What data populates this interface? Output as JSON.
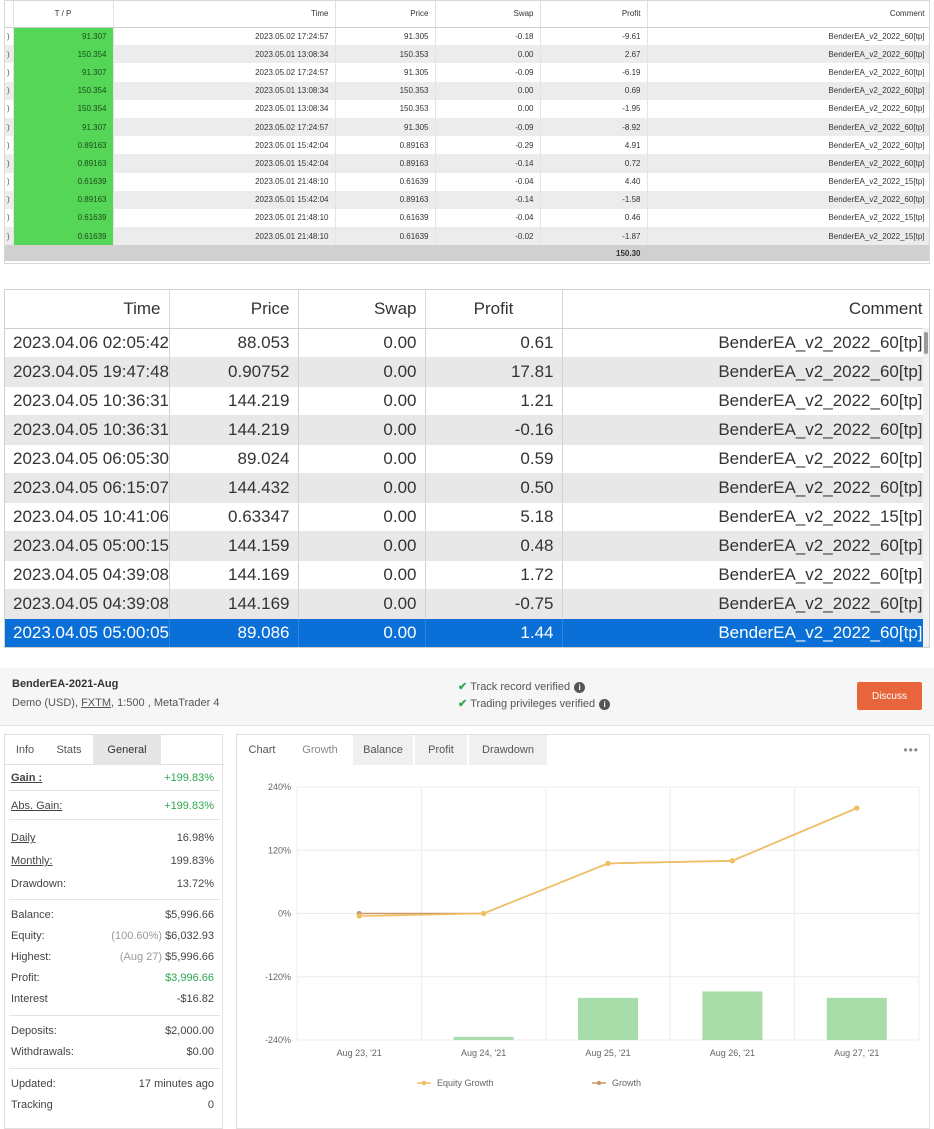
{
  "table_small": {
    "headers": [
      "",
      "T / P",
      "Time",
      "Price",
      "Swap",
      "Profit",
      "Comment"
    ],
    "rows": [
      {
        "edge": ")",
        "tp": "91.307",
        "time": "2023.05.02 17:24:57",
        "price": "91.305",
        "swap": "-0.18",
        "profit": "-9.61",
        "comment": "BenderEA_v2_2022_60[tp]"
      },
      {
        "edge": ")",
        "tp": "150.354",
        "time": "2023.05.01 13:08:34",
        "price": "150.353",
        "swap": "0.00",
        "profit": "2.67",
        "comment": "BenderEA_v2_2022_60[tp]"
      },
      {
        "edge": ")",
        "tp": "91.307",
        "time": "2023.05.02 17:24:57",
        "price": "91.305",
        "swap": "-0.09",
        "profit": "-6.19",
        "comment": "BenderEA_v2_2022_60[tp]"
      },
      {
        "edge": ")",
        "tp": "150.354",
        "time": "2023.05.01 13:08:34",
        "price": "150.353",
        "swap": "0.00",
        "profit": "0.69",
        "comment": "BenderEA_v2_2022_60[tp]"
      },
      {
        "edge": ")",
        "tp": "150.354",
        "time": "2023.05.01 13:08:34",
        "price": "150.353",
        "swap": "0.00",
        "profit": "-1.95",
        "comment": "BenderEA_v2_2022_60[tp]"
      },
      {
        "edge": ")",
        "tp": "91.307",
        "time": "2023.05.02 17:24:57",
        "price": "91.305",
        "swap": "-0.09",
        "profit": "-8.92",
        "comment": "BenderEA_v2_2022_60[tp]"
      },
      {
        "edge": ")",
        "tp": "0.89163",
        "time": "2023.05.01 15:42:04",
        "price": "0.89163",
        "swap": "-0.29",
        "profit": "4.91",
        "comment": "BenderEA_v2_2022_60[tp]"
      },
      {
        "edge": ")",
        "tp": "0.89163",
        "time": "2023.05.01 15:42:04",
        "price": "0.89163",
        "swap": "-0.14",
        "profit": "0.72",
        "comment": "BenderEA_v2_2022_60[tp]"
      },
      {
        "edge": ")",
        "tp": "0.61639",
        "time": "2023.05.01 21:48:10",
        "price": "0.61639",
        "swap": "-0.04",
        "profit": "4.40",
        "comment": "BenderEA_v2_2022_15[tp]"
      },
      {
        "edge": ")",
        "tp": "0.89163",
        "time": "2023.05.01 15:42:04",
        "price": "0.89163",
        "swap": "-0.14",
        "profit": "-1.58",
        "comment": "BenderEA_v2_2022_60[tp]"
      },
      {
        "edge": ")",
        "tp": "0.61639",
        "time": "2023.05.01 21:48:10",
        "price": "0.61639",
        "swap": "-0.04",
        "profit": "0.46",
        "comment": "BenderEA_v2_2022_15[tp]"
      },
      {
        "edge": ")",
        "tp": "0.61639",
        "time": "2023.05.01 21:48:10",
        "price": "0.61639",
        "swap": "-0.02",
        "profit": "-1.87",
        "comment": "BenderEA_v2_2022_15[tp]"
      }
    ],
    "total_profit": "150.30"
  },
  "table_large": {
    "headers": [
      "Time",
      "Price",
      "Swap",
      "Profit",
      "Comment"
    ],
    "rows": [
      {
        "time": "2023.04.06 02:05:42",
        "price": "88.053",
        "swap": "0.00",
        "profit": "0.61",
        "comment": "BenderEA_v2_2022_60[tp]"
      },
      {
        "time": "2023.04.05 19:47:48",
        "price": "0.90752",
        "swap": "0.00",
        "profit": "17.81",
        "comment": "BenderEA_v2_2022_60[tp]"
      },
      {
        "time": "2023.04.05 10:36:31",
        "price": "144.219",
        "swap": "0.00",
        "profit": "1.21",
        "comment": "BenderEA_v2_2022_60[tp]"
      },
      {
        "time": "2023.04.05 10:36:31",
        "price": "144.219",
        "swap": "0.00",
        "profit": "-0.16",
        "comment": "BenderEA_v2_2022_60[tp]"
      },
      {
        "time": "2023.04.05 06:05:30",
        "price": "89.024",
        "swap": "0.00",
        "profit": "0.59",
        "comment": "BenderEA_v2_2022_60[tp]"
      },
      {
        "time": "2023.04.05 06:15:07",
        "price": "144.432",
        "swap": "0.00",
        "profit": "0.50",
        "comment": "BenderEA_v2_2022_60[tp]"
      },
      {
        "time": "2023.04.05 10:41:06",
        "price": "0.63347",
        "swap": "0.00",
        "profit": "5.18",
        "comment": "BenderEA_v2_2022_15[tp]"
      },
      {
        "time": "2023.04.05 05:00:15",
        "price": "144.159",
        "swap": "0.00",
        "profit": "0.48",
        "comment": "BenderEA_v2_2022_60[tp]"
      },
      {
        "time": "2023.04.05 04:39:08",
        "price": "144.169",
        "swap": "0.00",
        "profit": "1.72",
        "comment": "BenderEA_v2_2022_60[tp]"
      },
      {
        "time": "2023.04.05 04:39:08",
        "price": "144.169",
        "swap": "0.00",
        "profit": "-0.75",
        "comment": "BenderEA_v2_2022_60[tp]"
      },
      {
        "time": "2023.04.05 05:00:05",
        "price": "89.086",
        "swap": "0.00",
        "profit": "1.44",
        "comment": "BenderEA_v2_2022_60[tp]",
        "selected": true
      }
    ]
  },
  "account": {
    "name": "BenderEA-2021-Aug",
    "sub_prefix": "Demo (USD), ",
    "broker": "FXTM",
    "sub_suffix": ", 1:500 , MetaTrader 4",
    "verify_1": "Track record verified",
    "verify_2": "Trading privileges verified",
    "discuss_label": "Discuss",
    "accent_color": "#e8653b"
  },
  "left_tabs": [
    "Info",
    "Stats",
    "General"
  ],
  "stats": {
    "gain_label": "Gain :",
    "gain": "+199.83%",
    "abs_gain_label": "Abs. Gain:",
    "abs_gain": "+199.83%",
    "daily_label": "Daily",
    "daily": "16.98%",
    "monthly_label": "Monthly:",
    "monthly": "199.83%",
    "drawdown_label": "Drawdown:",
    "drawdown": "13.72%",
    "balance_label": "Balance:",
    "balance": "$5,996.66",
    "equity_label": "Equity:",
    "equity_note": "(100.60%)",
    "equity": "$6,032.93",
    "highest_label": "Highest:",
    "highest_note": "(Aug 27)",
    "highest": "$5,996.66",
    "profit_label": "Profit:",
    "profit": "$3,996.66",
    "interest_label": "Interest",
    "interest": "-$16.82",
    "deposits_label": "Deposits:",
    "deposits": "$2,000.00",
    "withdrawals_label": "Withdrawals:",
    "withdrawals": "$0.00",
    "updated_label": "Updated:",
    "updated": "17 minutes ago",
    "tracking_label": "Tracking",
    "tracking": "0"
  },
  "chart_tabs": [
    "Chart",
    "Growth",
    "Balance",
    "Profit",
    "Drawdown"
  ],
  "chart_more": "•••",
  "chart_data": {
    "type": "line",
    "categories": [
      "Aug 23, '21",
      "Aug 24, '21",
      "Aug 25, '21",
      "Aug 26, '21",
      "Aug 27, '21"
    ],
    "y_ticks": [
      "240%",
      "120%",
      "0%",
      "-120%",
      "-240%"
    ],
    "ylim": [
      -240,
      240
    ],
    "series": [
      {
        "name": "Growth",
        "type": "line",
        "values": [
          0,
          0,
          95,
          100,
          200
        ],
        "color": "#c9976a"
      },
      {
        "name": "Equity Growth",
        "type": "line",
        "values": [
          -5,
          0,
          95,
          100,
          200
        ],
        "color": "#f0c060"
      },
      {
        "name": "",
        "type": "bar",
        "values": [
          0,
          -234,
          -160,
          -148,
          -160
        ],
        "color": "#a8dca8"
      }
    ],
    "legend": [
      "Equity Growth",
      "Growth"
    ],
    "legend_position": "bottom",
    "grid": true
  }
}
